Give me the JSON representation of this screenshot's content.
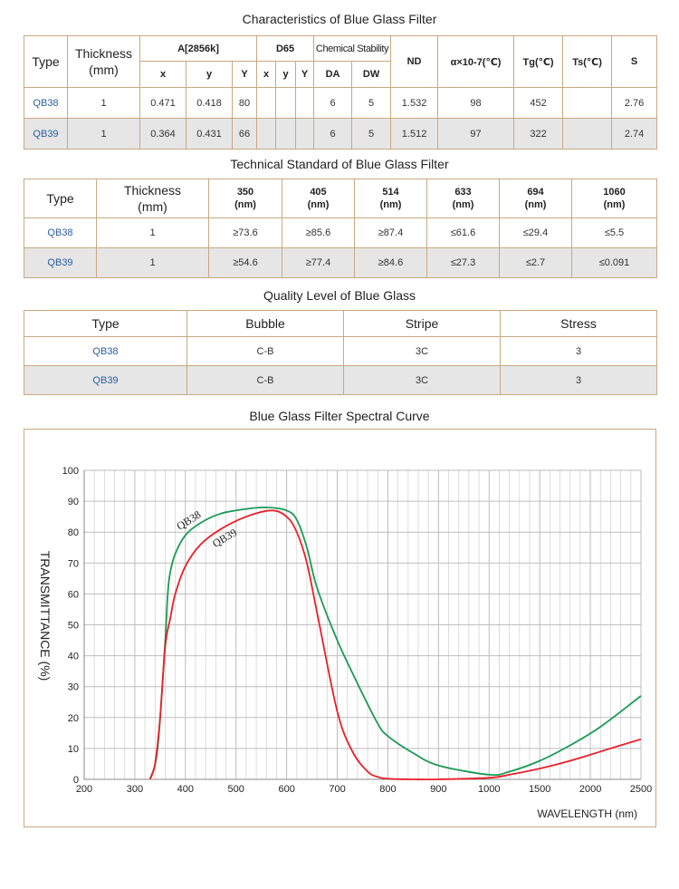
{
  "table1": {
    "title": "Characteristics of  Blue Glass Filter",
    "headers": {
      "type": "Type",
      "thickness": "Thickness\n(mm)",
      "a2856k": "A[2856k]",
      "d65": "D65",
      "chemical_stability": "Chemical Stability",
      "nd": "ND",
      "alpha": "α×10-7(℃)",
      "tg": "Tg(℃)",
      "ts": "Ts(℃)",
      "s": "S",
      "x": "x",
      "y": "y",
      "Y": "Y",
      "d65_x": "x",
      "d65_y": "y",
      "d65_Y": "Y",
      "da": "DA",
      "dw": "DW"
    },
    "rows": [
      {
        "type": "QB38",
        "thickness": "1",
        "x": "0.471",
        "y": "0.418",
        "Y": "80",
        "d65_x": "",
        "d65_y": "",
        "d65_Y": "",
        "da": "6",
        "dw": "5",
        "nd": "1.532",
        "alpha": "98",
        "tg": "452",
        "ts": "",
        "s": "2.76"
      },
      {
        "type": "QB39",
        "thickness": "1",
        "x": "0.364",
        "y": "0.431",
        "Y": "66",
        "d65_x": "",
        "d65_y": "",
        "d65_Y": "",
        "da": "6",
        "dw": "5",
        "nd": "1.512",
        "alpha": "97",
        "tg": "322",
        "ts": "",
        "s": "2.74"
      }
    ]
  },
  "table2": {
    "title": "Technical Standard of Blue Glass Filter",
    "headers": {
      "type": "Type",
      "thickness": "Thickness\n(mm)",
      "wl": [
        "350\n(nm)",
        "405\n(nm)",
        "514\n(nm)",
        "633\n(nm)",
        "694\n(nm)",
        "1060\n(nm)"
      ]
    },
    "rows": [
      {
        "type": "QB38",
        "thickness": "1",
        "v": [
          "≥73.6",
          "≥85.6",
          "≥87.4",
          "≤61.6",
          "≤29.4",
          "≤5.5"
        ]
      },
      {
        "type": "QB39",
        "thickness": "1",
        "v": [
          "≥54.6",
          "≥77.4",
          "≥84.6",
          "≤27.3",
          "≤2.7",
          "≤0.091"
        ]
      }
    ]
  },
  "table3": {
    "title": "Quality Level of Blue Glass",
    "headers": {
      "type": "Type",
      "bubble": "Bubble",
      "stripe": "Stripe",
      "stress": "Stress"
    },
    "rows": [
      {
        "type": "QB38",
        "bubble": "C-B",
        "stripe": "3C",
        "stress": "3"
      },
      {
        "type": "QB39",
        "bubble": "C-B",
        "stripe": "3C",
        "stress": "3"
      }
    ]
  },
  "chart": {
    "title": "Blue Glass Filter Spectral Curve"
  },
  "chart_data": {
    "type": "line",
    "title": "Blue Glass Filter Spectral Curve",
    "ylabel": "TRANSMITTANCE  (%)",
    "xlabel": "WAVELENGTH (nm)",
    "x_ticks": [
      "200",
      "300",
      "400",
      "500",
      "600",
      "700",
      "800",
      "900",
      "1000",
      "1500",
      "2000",
      "2500"
    ],
    "y_ticks": [
      "0",
      "10",
      "20",
      "30",
      "40",
      "50",
      "60",
      "70",
      "80",
      "90",
      "100"
    ],
    "ylim": [
      0,
      100
    ],
    "grid": true,
    "colors": {
      "QB38": "#1a9a55",
      "QB39": "#e8202a"
    },
    "series": [
      {
        "name": "QB38",
        "x": [
          330,
          345,
          360,
          365,
          370,
          380,
          400,
          430,
          470,
          520,
          560,
          600,
          620,
          640,
          660,
          700,
          740,
          780,
          800,
          850,
          900,
          1000,
          1200,
          1500,
          1800,
          2100,
          2500
        ],
        "y": [
          0,
          10,
          45,
          60,
          67,
          73,
          79,
          83,
          86,
          87.5,
          88,
          87,
          84,
          75,
          62,
          45,
          31,
          18,
          14,
          8.5,
          4.5,
          1.5,
          2.5,
          6,
          11,
          17,
          27
        ]
      },
      {
        "name": "QB39",
        "x": [
          330,
          340,
          350,
          360,
          370,
          380,
          400,
          430,
          470,
          520,
          570,
          600,
          620,
          640,
          660,
          700,
          730,
          760,
          780,
          800,
          850,
          900,
          1000,
          1200,
          1500,
          1800,
          2100,
          2500
        ],
        "y": [
          0,
          5,
          20,
          43,
          52,
          60,
          69,
          76,
          81,
          85,
          87,
          85,
          80,
          70,
          54,
          22,
          9,
          2.5,
          0.8,
          0.2,
          0,
          0,
          0.5,
          1.5,
          3.5,
          6,
          9,
          13
        ]
      }
    ],
    "annotations": [
      "QB38",
      "QB39"
    ]
  }
}
